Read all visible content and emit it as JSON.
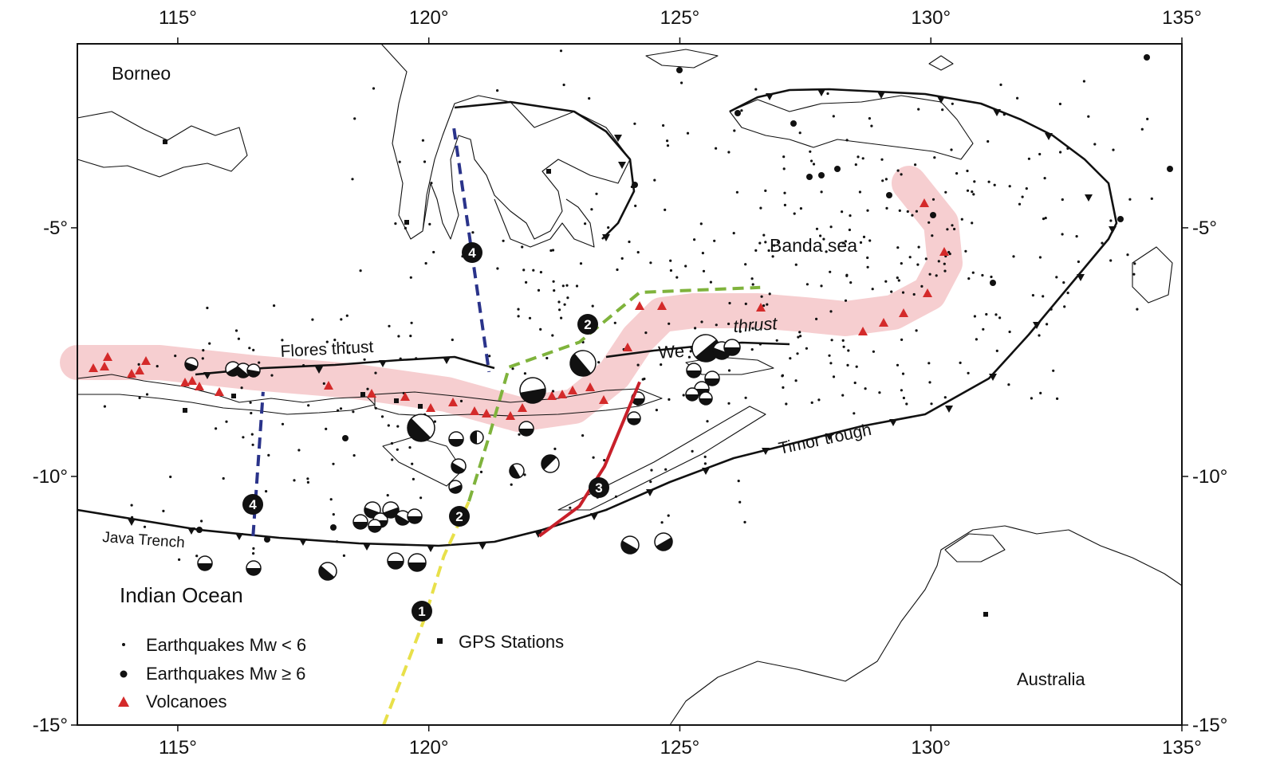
{
  "map": {
    "lon_range": [
      113,
      135
    ],
    "lat_range": [
      -15,
      -1.3
    ],
    "projection": "lon-lat",
    "x_ticks": [
      "115°",
      "120°",
      "125°",
      "130°",
      "135°"
    ],
    "y_ticks": [
      "-5°",
      "-10°",
      "-15°"
    ],
    "colors": {
      "volcanic_arc_band": "#f4c6c8",
      "volcano": "#d42a2a",
      "profile_1": "#e8e04a",
      "profile_2": "#7fb33c",
      "profile_3": "#c8202a",
      "profile_4": "#2a338a",
      "fault": "#111111"
    }
  },
  "labels": {
    "borneo": "Borneo",
    "banda_sea": "Banda sea",
    "flores_thrust": "Flores  thrust",
    "wetar_thrust_start": "We",
    "wetar_thrust_end": "thrust",
    "timor_trough": "Timor trough",
    "java_trench": "Java Trench",
    "indian_ocean": "Indian Ocean",
    "australia": "Australia"
  },
  "profiles": [
    {
      "id": "1",
      "label": "1",
      "color": "#e8e04a",
      "path": [
        [
          119.1,
          -15.0
        ],
        [
          119.9,
          -12.9
        ],
        [
          120.3,
          -11.6
        ],
        [
          120.8,
          -10.5
        ]
      ]
    },
    {
      "id": "2",
      "label": "2",
      "color": "#7fb33c",
      "path": [
        [
          120.8,
          -10.5
        ],
        [
          121.2,
          -9.2
        ],
        [
          121.6,
          -7.8
        ],
        [
          123.0,
          -7.3
        ],
        [
          124.2,
          -6.3
        ],
        [
          126.6,
          -6.2
        ]
      ]
    },
    {
      "id": "3",
      "label": "3",
      "color": "#c8202a",
      "path": [
        [
          122.2,
          -11.2
        ],
        [
          123.0,
          -10.6
        ],
        [
          123.5,
          -9.8
        ],
        [
          124.2,
          -8.1
        ]
      ]
    },
    {
      "id": "4a",
      "label": "4",
      "color": "#2a338a",
      "path": [
        [
          120.5,
          -3.0
        ],
        [
          121.2,
          -7.9
        ]
      ]
    },
    {
      "id": "4b",
      "label": "4",
      "color": "#2a338a",
      "path": [
        [
          116.5,
          -11.2
        ],
        [
          116.7,
          -8.3
        ]
      ]
    }
  ],
  "legend": {
    "eq_small": "Earthquakes Mw < 6",
    "eq_large": "Earthquakes Mw ≥ 6",
    "volcanoes": "Volcanoes",
    "gps": "GPS Stations"
  }
}
